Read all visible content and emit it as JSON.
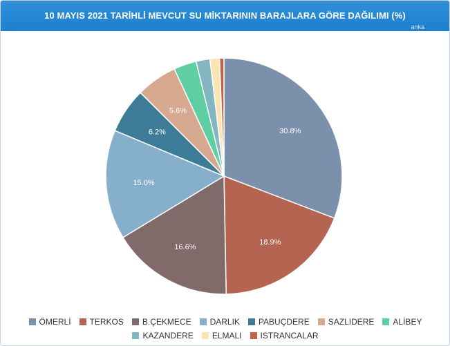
{
  "header": {
    "title": "10 MAYIS 2021 TARİHLİ MEVCUT SU MİKTARININ BARAJLARA GÖRE DAĞILIMI (%)",
    "brand": "anka"
  },
  "chart_data": {
    "type": "pie",
    "title": "10 MAYIS 2021 TARİHLİ MEVCUT SU MİKTARININ BARAJLARA GÖRE DAĞILIMI (%)",
    "legend_position": "bottom",
    "start_angle_deg": 0,
    "direction": "clockwise",
    "slices": [
      {
        "name": "ÖMERLİ",
        "value": 30.8,
        "color": "#7b91ab",
        "label": "30.8%"
      },
      {
        "name": "TERKOS",
        "value": 18.9,
        "color": "#b56452",
        "label": "18.9%"
      },
      {
        "name": "B.ÇEKMECE",
        "value": 16.6,
        "color": "#806a6a",
        "label": "16.6%"
      },
      {
        "name": "DARLIK",
        "value": 15.0,
        "color": "#86afcc",
        "label": "15.0%"
      },
      {
        "name": "PABUÇDERE",
        "value": 6.2,
        "color": "#3e7b97",
        "label": "6.2%"
      },
      {
        "name": "SAZLIDERE",
        "value": 5.6,
        "color": "#d7a890",
        "label": "5.6%"
      },
      {
        "name": "ALİBEY",
        "value": 3.1,
        "color": "#5fcfa3",
        "label": ""
      },
      {
        "name": "KAZANDERE",
        "value": 1.9,
        "color": "#82b6c1",
        "label": ""
      },
      {
        "name": "ELMALI",
        "value": 1.3,
        "color": "#fbe3b2",
        "label": ""
      },
      {
        "name": "ISTRANCALAR",
        "value": 0.6,
        "color": "#c0644a",
        "label": ""
      }
    ]
  }
}
